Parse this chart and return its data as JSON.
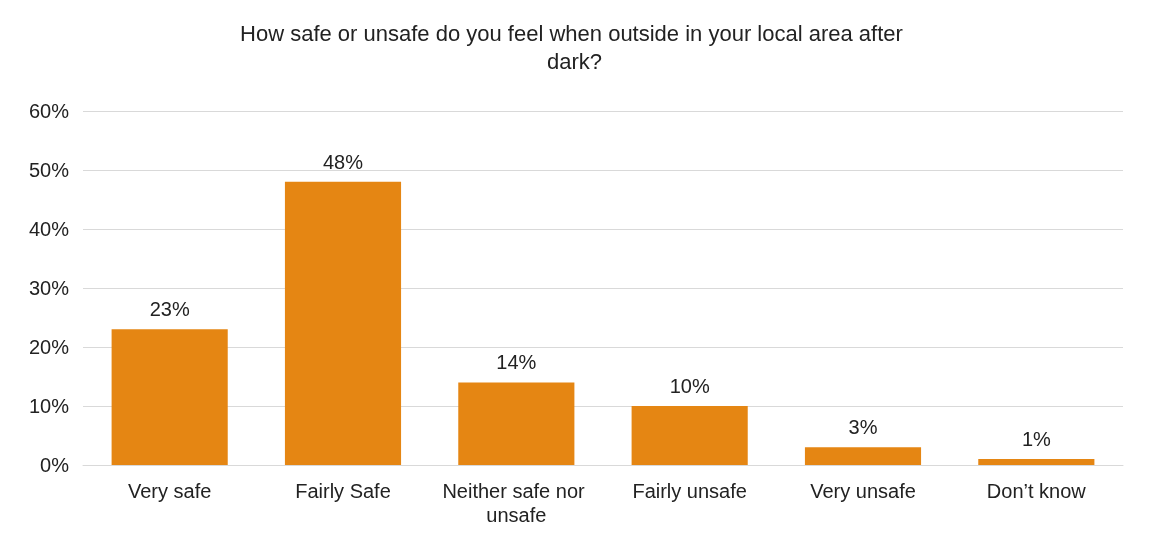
{
  "chart_data": {
    "type": "bar",
    "title": "How safe or unsafe do you feel when outside in your local area after dark?",
    "categories": [
      "Very safe",
      "Fairly Safe",
      "Neither safe nor unsafe",
      "Fairly unsafe",
      "Very unsafe",
      "Don’t know"
    ],
    "values": [
      23,
      48,
      14,
      10,
      3,
      1
    ],
    "value_labels": [
      "23%",
      "48%",
      "14%",
      "10%",
      "3%",
      "1%"
    ],
    "color": "#e58613",
    "ylim": [
      0,
      60
    ],
    "yticks": [
      {
        "value": 0,
        "label": "0%"
      },
      {
        "value": 10,
        "label": "10%"
      },
      {
        "value": 20,
        "label": "20%"
      },
      {
        "value": 30,
        "label": "30%"
      },
      {
        "value": 40,
        "label": "40%"
      },
      {
        "value": 50,
        "label": "50%"
      },
      {
        "value": 60,
        "label": "60%"
      }
    ],
    "grid": "y"
  }
}
